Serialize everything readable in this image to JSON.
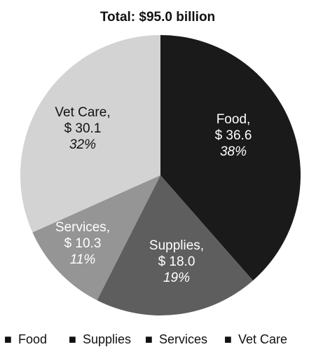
{
  "chart_data": {
    "type": "pie",
    "title": "Total: $95.0 billion",
    "categories": [
      "Food",
      "Supplies",
      "Services",
      "Vet Care"
    ],
    "values": [
      36.6,
      18.0,
      10.3,
      30.1
    ],
    "value_labels": [
      "$ 36.6",
      "$ 18.0",
      "$ 10.3",
      "$ 30.1"
    ],
    "slice_names": [
      "Food,",
      "Supplies,",
      "Services,",
      "Vet Care,"
    ],
    "percentages": [
      "38%",
      "19%",
      "11%",
      "32%"
    ],
    "colors": [
      "#1a1a1a",
      "#5e5e5e",
      "#959595",
      "#d3d3d3"
    ],
    "label_colors": [
      "#ffffff",
      "#ffffff",
      "#ffffff",
      "#111111"
    ],
    "start_angle_deg": 0,
    "direction": "clockwise",
    "legend": {
      "position": "bottom",
      "marker": "■"
    }
  }
}
